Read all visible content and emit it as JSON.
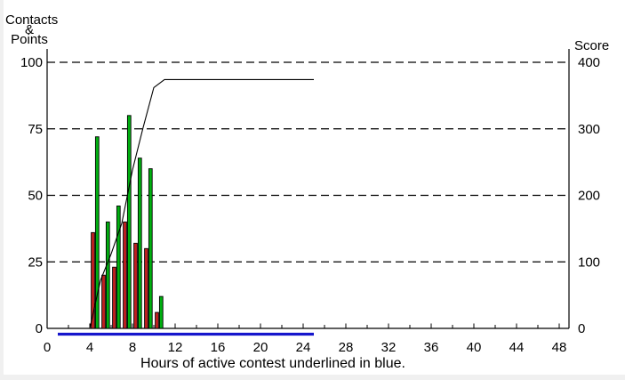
{
  "chart_data": {
    "type": "bar+line",
    "title": "",
    "x_axis": {
      "label": "Hours of active contest underlined in blue.",
      "tick_labels": [
        0,
        4,
        8,
        12,
        16,
        20,
        24,
        28,
        32,
        36,
        40,
        44,
        48
      ],
      "minor_tick_step": 2,
      "range": [
        0,
        49
      ]
    },
    "y_axis_left": {
      "label_lines": [
        "Contacts",
        "&",
        "Points"
      ],
      "tick_labels": [
        0,
        25,
        50,
        75,
        100
      ],
      "range": [
        0,
        100
      ],
      "gridlines_at": [
        25,
        50,
        75,
        100
      ],
      "gridline_style": "dashed"
    },
    "y_axis_right": {
      "label": "Score",
      "tick_labels": [
        0,
        100,
        200,
        300,
        400
      ],
      "range": [
        0,
        400
      ]
    },
    "bars": {
      "hours": [
        4,
        5,
        6,
        7,
        8,
        9,
        10
      ],
      "series": [
        {
          "name": "contacts-per-hour",
          "color": "#c02020",
          "values": [
            36,
            20,
            23,
            40,
            32,
            30,
            6
          ]
        },
        {
          "name": "points-per-hour",
          "color": "#00b010",
          "values": [
            72,
            40,
            46,
            80,
            64,
            60,
            12
          ]
        }
      ]
    },
    "line": {
      "name": "cumulative-score",
      "color": "#000000",
      "axis": "right",
      "points_hour_score": [
        [
          4,
          0
        ],
        [
          5,
          72
        ],
        [
          6,
          112
        ],
        [
          7,
          158
        ],
        [
          8,
          238
        ],
        [
          9,
          302
        ],
        [
          10,
          362
        ],
        [
          11,
          374
        ],
        [
          25,
          374
        ]
      ]
    },
    "active_contest_underline": {
      "color": "#1616cc",
      "from_hour": 1,
      "to_hour": 25
    }
  },
  "colors": {
    "window_bg": "#f0f0f0",
    "panel_bg": "#ffffff",
    "axis": "#000000",
    "text": "#000000"
  }
}
